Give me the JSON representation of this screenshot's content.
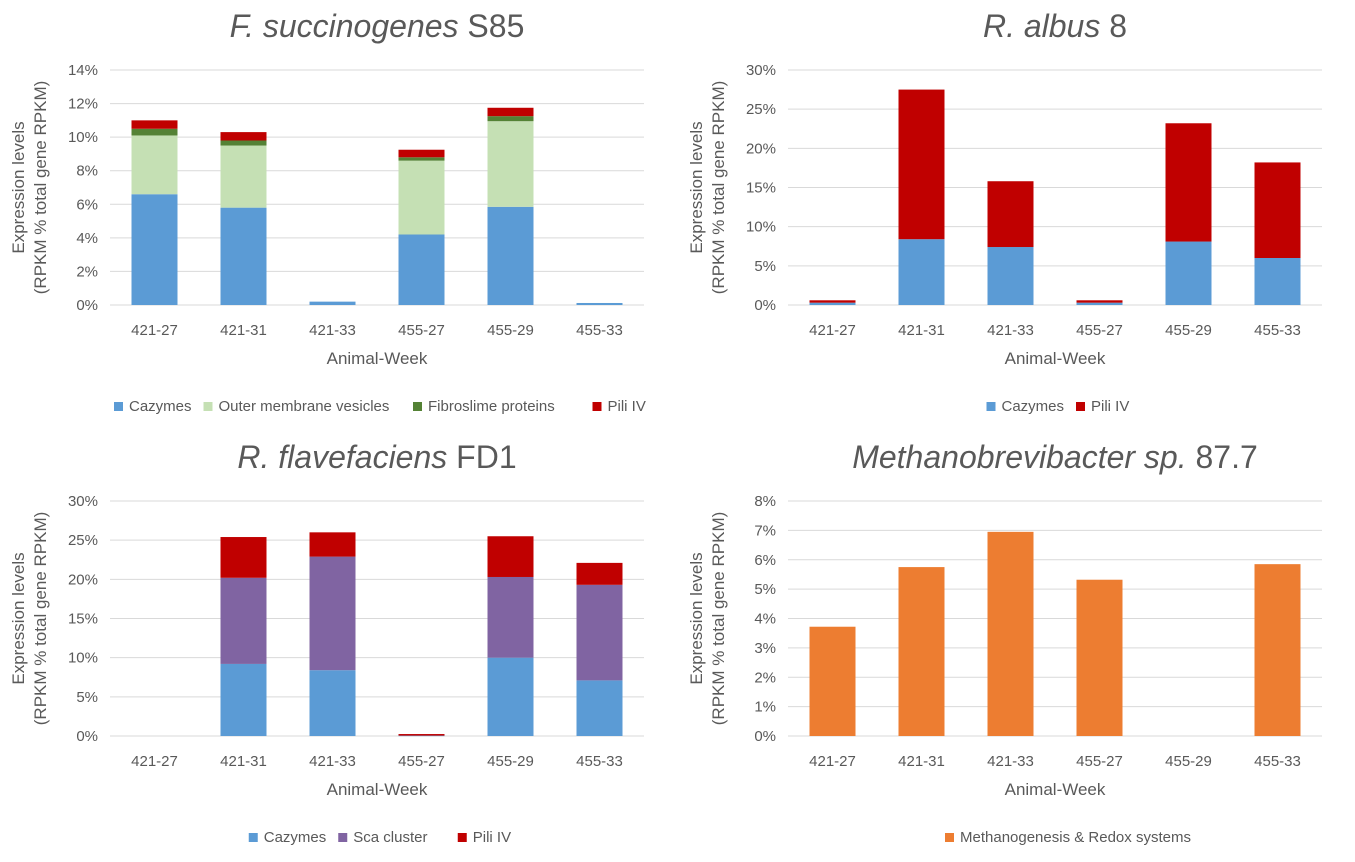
{
  "chart_data": [
    {
      "type": "bar",
      "stacked": true,
      "title_italic": "F. succinogenes",
      "title_rest": " S85",
      "xlabel": "Animal-Week",
      "ylabel_line1": "Expression levels",
      "ylabel_line2": "(RPKM % total gene RPKM)",
      "ylim": [
        0,
        14
      ],
      "yticks": [
        0,
        2,
        4,
        6,
        8,
        10,
        12,
        14
      ],
      "ytick_labels": [
        "0%",
        "2%",
        "4%",
        "6%",
        "8%",
        "10%",
        "12%",
        "14%"
      ],
      "categories": [
        "421-27",
        "421-31",
        "421-33",
        "455-27",
        "455-29",
        "455-33"
      ],
      "grid": true,
      "legend_position": "bottom",
      "series": [
        {
          "name": "Cazymes",
          "color": "#5b9bd5",
          "values": [
            6.6,
            5.8,
            0.2,
            4.2,
            5.85,
            0.12
          ]
        },
        {
          "name": "Outer membrane vesicles",
          "color": "#c5e0b4",
          "values": [
            3.5,
            3.7,
            0,
            4.4,
            5.1,
            0
          ]
        },
        {
          "name": "Fibroslime proteins",
          "color": "#548235",
          "values": [
            0.4,
            0.3,
            0,
            0.2,
            0.3,
            0
          ]
        },
        {
          "name": "Pili IV",
          "color": "#c00000",
          "values": [
            0.5,
            0.5,
            0,
            0.45,
            0.5,
            0
          ]
        }
      ]
    },
    {
      "type": "bar",
      "stacked": true,
      "title_italic": "R. albus",
      "title_rest": " 8",
      "xlabel": "Animal-Week",
      "ylabel_line1": "Expression levels",
      "ylabel_line2": "(RPKM % total gene RPKM)",
      "ylim": [
        0,
        30
      ],
      "yticks": [
        0,
        5,
        10,
        15,
        20,
        25,
        30
      ],
      "ytick_labels": [
        "0%",
        "5%",
        "10%",
        "15%",
        "20%",
        "25%",
        "30%"
      ],
      "categories": [
        "421-27",
        "421-31",
        "421-33",
        "455-27",
        "455-29",
        "455-33"
      ],
      "grid": true,
      "legend_position": "bottom",
      "series": [
        {
          "name": "Cazymes",
          "color": "#5b9bd5",
          "values": [
            0.3,
            8.4,
            7.4,
            0.3,
            8.1,
            6.0
          ]
        },
        {
          "name": "Pili IV",
          "color": "#c00000",
          "values": [
            0.3,
            19.1,
            8.4,
            0.3,
            15.1,
            12.2
          ]
        }
      ]
    },
    {
      "type": "bar",
      "stacked": true,
      "title_italic": "R. flavefaciens",
      "title_rest": " FD1",
      "xlabel": "Animal-Week",
      "ylabel_line1": "Expression levels",
      "ylabel_line2": "(RPKM % total gene RPKM)",
      "ylim": [
        0,
        30
      ],
      "yticks": [
        0,
        5,
        10,
        15,
        20,
        25,
        30
      ],
      "ytick_labels": [
        "0%",
        "5%",
        "10%",
        "15%",
        "20%",
        "25%",
        "30%"
      ],
      "categories": [
        "421-27",
        "421-31",
        "421-33",
        "455-27",
        "455-29",
        "455-33"
      ],
      "grid": true,
      "legend_position": "bottom",
      "series": [
        {
          "name": "Cazymes",
          "color": "#5b9bd5",
          "values": [
            0,
            9.2,
            8.4,
            0.05,
            10.0,
            7.1
          ]
        },
        {
          "name": "Sca cluster",
          "color": "#8064a2",
          "values": [
            0,
            11.0,
            14.5,
            0,
            10.3,
            12.2
          ]
        },
        {
          "name": "Pili IV",
          "color": "#c00000",
          "values": [
            0,
            5.2,
            3.1,
            0.2,
            5.2,
            2.8
          ]
        }
      ]
    },
    {
      "type": "bar",
      "stacked": true,
      "title_italic": "Methanobrevibacter sp.",
      "title_rest": " 87.7",
      "xlabel": "Animal-Week",
      "ylabel_line1": "Expression levels",
      "ylabel_line2": "(RPKM % total gene RPKM)",
      "ylim": [
        0,
        8
      ],
      "yticks": [
        0,
        1,
        2,
        3,
        4,
        5,
        6,
        7,
        8
      ],
      "ytick_labels": [
        "0%",
        "1%",
        "2%",
        "3%",
        "4%",
        "5%",
        "6%",
        "7%",
        "8%"
      ],
      "categories": [
        "421-27",
        "421-31",
        "421-33",
        "455-27",
        "455-29",
        "455-33"
      ],
      "grid": true,
      "legend_position": "bottom",
      "series": [
        {
          "name": "Methanogenesis & Redox systems",
          "color": "#ed7d31",
          "values": [
            3.72,
            5.75,
            6.95,
            5.32,
            0,
            5.85
          ]
        }
      ]
    }
  ]
}
